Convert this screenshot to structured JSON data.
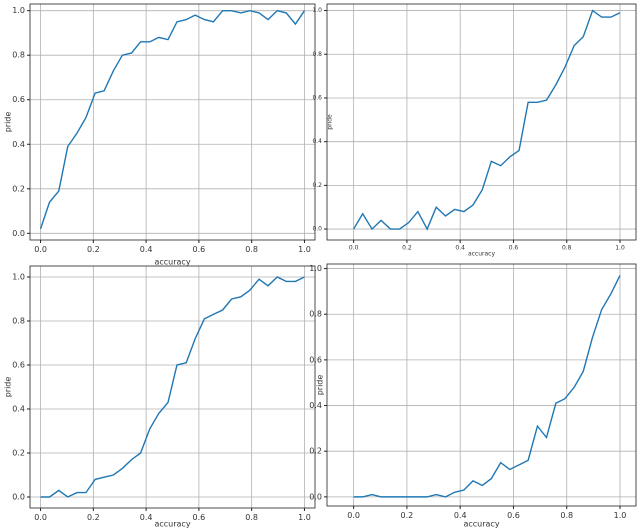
{
  "chart_data": [
    {
      "type": "line",
      "xlabel": "accuracy",
      "ylabel": "pride",
      "x": [
        0,
        0.034,
        0.069,
        0.103,
        0.138,
        0.172,
        0.207,
        0.241,
        0.276,
        0.31,
        0.345,
        0.379,
        0.414,
        0.448,
        0.483,
        0.517,
        0.552,
        0.586,
        0.621,
        0.655,
        0.69,
        0.724,
        0.759,
        0.793,
        0.828,
        0.862,
        0.897,
        0.931,
        0.966,
        1
      ],
      "series": [
        {
          "color": "#1f77b4",
          "values": [
            0.02,
            0.14,
            0.19,
            0.39,
            0.45,
            0.52,
            0.63,
            0.64,
            0.73,
            0.8,
            0.81,
            0.86,
            0.86,
            0.88,
            0.87,
            0.95,
            0.96,
            0.98,
            0.96,
            0.95,
            1.0,
            1.0,
            0.99,
            1.0,
            0.99,
            0.96,
            1.0,
            0.99,
            0.94,
            1.0
          ]
        }
      ],
      "xlim": [
        -0.04,
        1.04
      ],
      "ylim": [
        -0.03,
        1.03
      ],
      "grid": true,
      "xticks": [
        {
          "value": 0,
          "label": "0.0"
        },
        {
          "value": 0.2,
          "label": "0.2"
        },
        {
          "value": 0.4,
          "label": "0.4"
        },
        {
          "value": 0.6,
          "label": "0.6"
        },
        {
          "value": 0.8,
          "label": "0.8"
        },
        {
          "value": 1,
          "label": "1.0"
        }
      ],
      "yticks": [
        {
          "value": 0,
          "label": "0.0"
        },
        {
          "value": 0.2,
          "label": "0.2"
        },
        {
          "value": 0.4,
          "label": "0.4"
        },
        {
          "value": 0.6,
          "label": "0.6"
        },
        {
          "value": 0.8,
          "label": "0.8"
        },
        {
          "value": 1,
          "label": "1.0"
        }
      ]
    },
    {
      "type": "line",
      "xlabel": "accuracy",
      "ylabel": "pride",
      "x": [
        0,
        0.034,
        0.069,
        0.103,
        0.138,
        0.172,
        0.207,
        0.241,
        0.276,
        0.31,
        0.345,
        0.379,
        0.414,
        0.448,
        0.483,
        0.517,
        0.552,
        0.586,
        0.621,
        0.655,
        0.69,
        0.724,
        0.759,
        0.793,
        0.828,
        0.862,
        0.897,
        0.931,
        0.966,
        1
      ],
      "series": [
        {
          "color": "#1f77b4",
          "values": [
            0.0,
            0.07,
            0.0,
            0.04,
            0.0,
            0.0,
            0.03,
            0.08,
            0.0,
            0.1,
            0.06,
            0.09,
            0.08,
            0.11,
            0.18,
            0.31,
            0.29,
            0.33,
            0.36,
            0.58,
            0.58,
            0.59,
            0.66,
            0.74,
            0.84,
            0.88,
            1.0,
            0.97,
            0.97,
            0.99
          ]
        }
      ],
      "xlim": [
        -0.1,
        1.06
      ],
      "ylim": [
        -0.05,
        1.03
      ],
      "grid": true,
      "xticks": [
        {
          "value": 0,
          "label": "0.0"
        },
        {
          "value": 0.2,
          "label": "0.2"
        },
        {
          "value": 0.4,
          "label": "0.4"
        },
        {
          "value": 0.6,
          "label": "0.6"
        },
        {
          "value": 0.8,
          "label": "0.8"
        },
        {
          "value": 1,
          "label": "1.0"
        }
      ],
      "yticks": [
        {
          "value": 0,
          "label": "0.0"
        },
        {
          "value": 0.2,
          "label": "0.2"
        },
        {
          "value": 0.4,
          "label": "0.4"
        },
        {
          "value": 0.6,
          "label": "0.6"
        },
        {
          "value": 0.8,
          "label": "0.8"
        },
        {
          "value": 1,
          "label": "1.0"
        }
      ]
    },
    {
      "type": "line",
      "xlabel": "accuracy",
      "ylabel": "pride",
      "x": [
        0,
        0.034,
        0.069,
        0.103,
        0.138,
        0.172,
        0.207,
        0.241,
        0.276,
        0.31,
        0.345,
        0.379,
        0.414,
        0.448,
        0.483,
        0.517,
        0.552,
        0.586,
        0.621,
        0.655,
        0.69,
        0.724,
        0.759,
        0.793,
        0.828,
        0.862,
        0.897,
        0.931,
        0.966,
        1
      ],
      "series": [
        {
          "color": "#1f77b4",
          "values": [
            0.0,
            0.0,
            0.03,
            0.0,
            0.02,
            0.02,
            0.08,
            0.09,
            0.1,
            0.13,
            0.17,
            0.2,
            0.31,
            0.38,
            0.43,
            0.6,
            0.61,
            0.72,
            0.81,
            0.83,
            0.85,
            0.9,
            0.91,
            0.94,
            0.99,
            0.96,
            1.0,
            0.98,
            0.98,
            1.0
          ]
        }
      ],
      "xlim": [
        -0.04,
        1.04
      ],
      "ylim": [
        -0.05,
        1.05
      ],
      "grid": true,
      "xticks": [
        {
          "value": 0,
          "label": "0.0"
        },
        {
          "value": 0.2,
          "label": "0.2"
        },
        {
          "value": 0.4,
          "label": "0.4"
        },
        {
          "value": 0.6,
          "label": "0.6"
        },
        {
          "value": 0.8,
          "label": "0.8"
        },
        {
          "value": 1,
          "label": "1.0"
        }
      ],
      "yticks": [
        {
          "value": 0,
          "label": "0.0"
        },
        {
          "value": 0.2,
          "label": "0.2"
        },
        {
          "value": 0.4,
          "label": "0.4"
        },
        {
          "value": 0.6,
          "label": "0.6"
        },
        {
          "value": 0.8,
          "label": "0.8"
        },
        {
          "value": 1,
          "label": "1.0"
        }
      ]
    },
    {
      "type": "line",
      "xlabel": "accuracy",
      "ylabel": "pride",
      "x": [
        0,
        0.034,
        0.069,
        0.103,
        0.138,
        0.172,
        0.207,
        0.241,
        0.276,
        0.31,
        0.345,
        0.379,
        0.414,
        0.448,
        0.483,
        0.517,
        0.552,
        0.586,
        0.621,
        0.655,
        0.69,
        0.724,
        0.759,
        0.793,
        0.828,
        0.862,
        0.897,
        0.931,
        0.966,
        1
      ],
      "series": [
        {
          "color": "#1f77b4",
          "values": [
            0.0,
            0.0,
            0.01,
            0.0,
            0.0,
            0.0,
            0.0,
            0.0,
            0.0,
            0.01,
            0.0,
            0.02,
            0.03,
            0.07,
            0.05,
            0.08,
            0.15,
            0.12,
            0.14,
            0.16,
            0.31,
            0.26,
            0.41,
            0.43,
            0.48,
            0.55,
            0.7,
            0.82,
            0.89,
            0.97
          ]
        }
      ],
      "xlim": [
        -0.1,
        1.06
      ],
      "ylim": [
        -0.04,
        1.02
      ],
      "grid": true,
      "xticks": [
        {
          "value": 0,
          "label": "0.0"
        },
        {
          "value": 0.2,
          "label": "0.2"
        },
        {
          "value": 0.4,
          "label": "0.4"
        },
        {
          "value": 0.6,
          "label": "0.6"
        },
        {
          "value": 0.8,
          "label": "0.8"
        },
        {
          "value": 1,
          "label": "1.0"
        }
      ],
      "yticks": [
        {
          "value": 0,
          "label": "0.0"
        },
        {
          "value": 0.2,
          "label": "0.2"
        },
        {
          "value": 0.4,
          "label": "0.4"
        },
        {
          "value": 0.6,
          "label": "0.6"
        },
        {
          "value": 0.8,
          "label": "0.8"
        },
        {
          "value": 1,
          "label": "1.0"
        }
      ]
    }
  ]
}
